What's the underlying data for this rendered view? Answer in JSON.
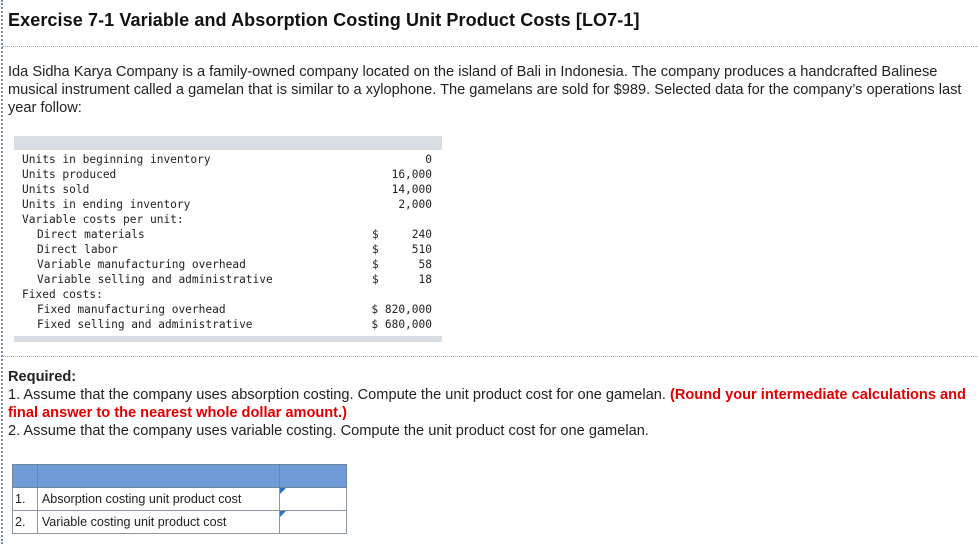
{
  "title": "Exercise 7-1 Variable and Absorption Costing Unit Product Costs [LO7-1]",
  "intro": "Ida Sidha Karya Company is a family-owned company located on the island of Bali in Indonesia. The company produces a handcrafted Balinese musical instrument called a gamelan that is similar to a xylophone. The gamelans are sold for $989. Selected data for the company’s operations last year follow:",
  "data_rows": [
    {
      "label": "Units in beginning inventory",
      "dollar": "",
      "value": "0",
      "indent": false
    },
    {
      "label": "Units produced",
      "dollar": "",
      "value": "16,000",
      "indent": false
    },
    {
      "label": "Units sold",
      "dollar": "",
      "value": "14,000",
      "indent": false
    },
    {
      "label": "Units in ending inventory",
      "dollar": "",
      "value": "2,000",
      "indent": false
    },
    {
      "label": "Variable costs per unit:",
      "dollar": "",
      "value": "",
      "indent": false
    },
    {
      "label": "Direct materials",
      "dollar": "$",
      "value": "240",
      "indent": true
    },
    {
      "label": "Direct labor",
      "dollar": "$",
      "value": "510",
      "indent": true
    },
    {
      "label": "Variable manufacturing overhead",
      "dollar": "$",
      "value": "58",
      "indent": true
    },
    {
      "label": "Variable selling and administrative",
      "dollar": "$",
      "value": "18",
      "indent": true
    },
    {
      "label": "Fixed costs:",
      "dollar": "",
      "value": "",
      "indent": false
    },
    {
      "label": "Fixed manufacturing overhead",
      "dollar": "",
      "value": "$ 820,000",
      "indent": true
    },
    {
      "label": "Fixed selling and administrative",
      "dollar": "",
      "value": "$ 680,000",
      "indent": true
    }
  ],
  "required": {
    "heading": "Required:",
    "item1_text": "1. Assume that the company uses absorption costing. Compute the unit product cost for one gamelan. ",
    "item1_note": "(Round your intermediate calculations and final answer to the nearest whole dollar amount.)",
    "item2_text": "2. Assume that the company uses variable costing. Compute the unit product cost for one gamelan."
  },
  "answer_table": {
    "rows": [
      {
        "num": "1.",
        "label": "Absorption costing unit product cost",
        "value": ""
      },
      {
        "num": "2.",
        "label": "Variable costing unit product cost",
        "value": ""
      }
    ]
  }
}
